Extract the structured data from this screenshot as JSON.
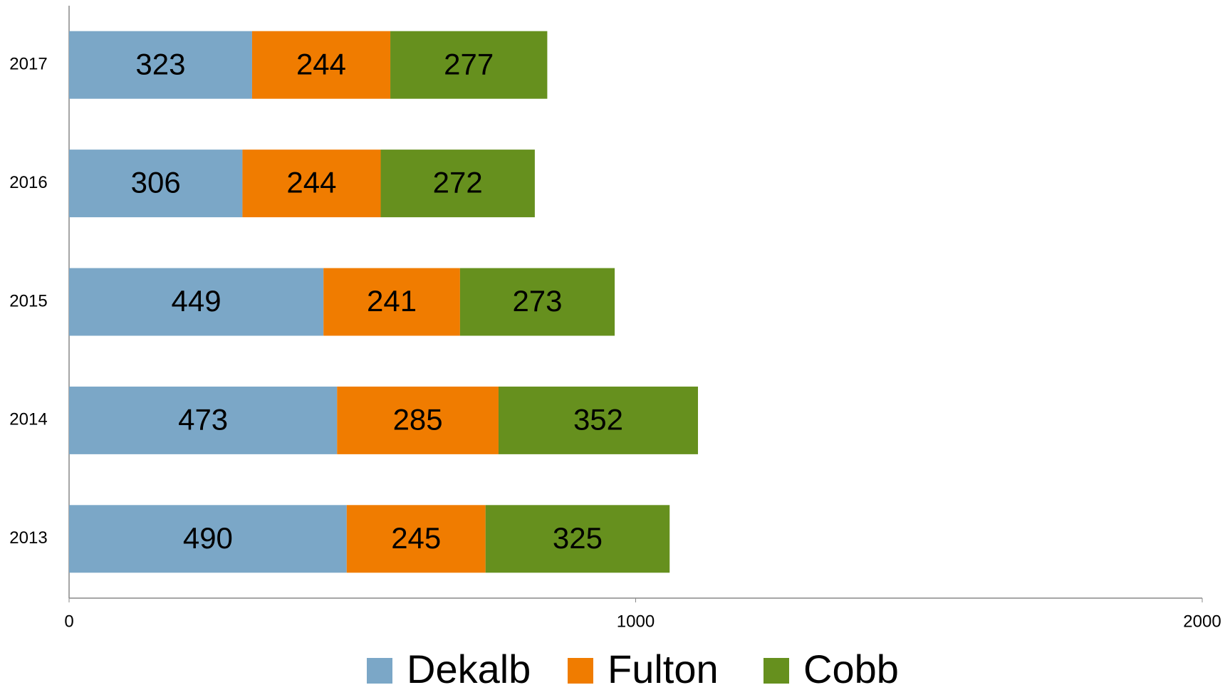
{
  "chart_data": {
    "type": "bar",
    "orientation": "horizontal",
    "stacked": true,
    "categories": [
      "2013",
      "2014",
      "2015",
      "2016",
      "2017"
    ],
    "series": [
      {
        "name": "Dekalb",
        "color": "#7ba7c7",
        "values": [
          490,
          473,
          449,
          306,
          323
        ]
      },
      {
        "name": "Fulton",
        "color": "#f07c00",
        "values": [
          245,
          285,
          241,
          244,
          244
        ]
      },
      {
        "name": "Cobb",
        "color": "#66901e",
        "values": [
          325,
          352,
          273,
          272,
          277
        ]
      }
    ],
    "xlim": [
      0,
      2000
    ],
    "xticks": [
      0,
      1000,
      2000
    ],
    "grid": false,
    "legend": "bottom"
  }
}
